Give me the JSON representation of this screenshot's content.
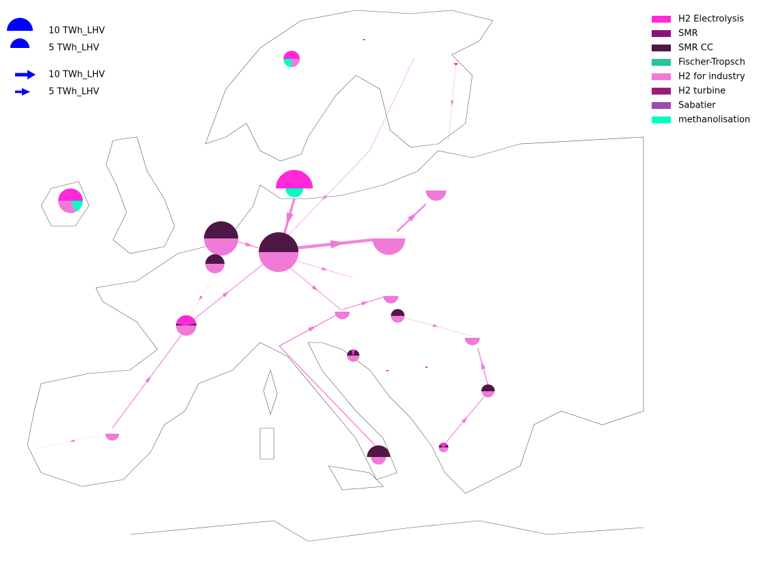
{
  "size_legend": {
    "circles": [
      "10 TWh_LHV",
      "5 TWh_LHV"
    ],
    "arrows": [
      "10 TWh_LHV",
      "5 TWh_LHV"
    ],
    "color": "#0000ff"
  },
  "legend": [
    {
      "name": "H2 Electrolysis",
      "color": "#ff29d9"
    },
    {
      "name": "SMR",
      "color": "#8b1178"
    },
    {
      "name": "SMR CC",
      "color": "#4f1745"
    },
    {
      "name": "Fischer-Tropsch",
      "color": "#25c49a"
    },
    {
      "name": "H2 for industry",
      "color": "#f07ad8"
    },
    {
      "name": "H2 turbine",
      "color": "#9b1d7a"
    },
    {
      "name": "Sabatier",
      "color": "#9b4db0"
    },
    {
      "name": "methanolisation",
      "color": "#00ffc0"
    }
  ]
}
